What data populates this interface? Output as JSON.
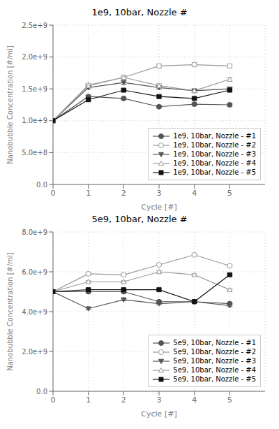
{
  "chart_data": [
    {
      "type": "line",
      "title": "1e9, 10bar, Nozzle #",
      "x_label": "Cycle [#]",
      "y_label": "Nanobubble Concentration [#/ml]",
      "x": [
        0,
        1,
        2,
        3,
        4,
        5
      ],
      "xlim": [
        0,
        6
      ],
      "xticks": [
        0,
        1,
        2,
        3,
        4,
        5
      ],
      "ylim": [
        0,
        2500000000.0
      ],
      "yticks": [
        {
          "value": 0.0,
          "label": "0.0"
        },
        {
          "value": 500000000.0,
          "label": "5.0e+8"
        },
        {
          "value": 1000000000.0,
          "label": "1.0e+9"
        },
        {
          "value": 1500000000.0,
          "label": "1.5e+9"
        },
        {
          "value": 2000000000.0,
          "label": "2.0e+9"
        },
        {
          "value": 2500000000.0,
          "label": "2.5e+9"
        }
      ],
      "grid": true,
      "legend": "lower right",
      "series": [
        {
          "name": "1e9, 10bar, Nozzle - #1",
          "color": "#555555",
          "marker": "circle",
          "values": [
            1000000000.0,
            1380000000.0,
            1350000000.0,
            1220000000.0,
            1260000000.0,
            1250000000.0
          ],
          "error": [
            0,
            20000000.0,
            20000000.0,
            20000000.0,
            20000000.0,
            20000000.0
          ]
        },
        {
          "name": "1e9, 10bar, Nozzle - #2",
          "color": "#999999",
          "marker": "circle_open",
          "values": [
            1000000000.0,
            1560000000.0,
            1680000000.0,
            1860000000.0,
            1880000000.0,
            1860000000.0
          ],
          "error": [
            0,
            20000000.0,
            20000000.0,
            30000000.0,
            30000000.0,
            30000000.0
          ]
        },
        {
          "name": "1e9, 10bar, Nozzle - #3",
          "color": "#555555",
          "marker": "triangle_down",
          "values": [
            1000000000.0,
            1520000000.0,
            1600000000.0,
            1520000000.0,
            1470000000.0,
            1500000000.0
          ],
          "error": [
            0,
            20000000.0,
            30000000.0,
            20000000.0,
            20000000.0,
            20000000.0
          ]
        },
        {
          "name": "1e9, 10bar, Nozzle - #4",
          "color": "#999999",
          "marker": "triangle_up_open",
          "values": [
            1000000000.0,
            1550000000.0,
            1680000000.0,
            1550000000.0,
            1470000000.0,
            1650000000.0
          ],
          "error": [
            0,
            30000000.0,
            30000000.0,
            30000000.0,
            30000000.0,
            30000000.0
          ]
        },
        {
          "name": "1e9, 10bar, Nozzle - #5",
          "color": "#111111",
          "marker": "square",
          "values": [
            1000000000.0,
            1330000000.0,
            1480000000.0,
            1380000000.0,
            1350000000.0,
            1480000000.0
          ],
          "error": [
            0,
            20000000.0,
            20000000.0,
            20000000.0,
            20000000.0,
            20000000.0
          ]
        }
      ]
    },
    {
      "type": "line",
      "title": "5e9, 10bar, Nozzle #",
      "x_label": "Cycle [#]",
      "y_label": "Nanobubble Concentration [#/ml]",
      "x": [
        0,
        1,
        2,
        3,
        4,
        5
      ],
      "xlim": [
        0,
        6
      ],
      "xticks": [
        0,
        1,
        2,
        3,
        4,
        5
      ],
      "ylim": [
        0,
        8000000000.0
      ],
      "yticks": [
        {
          "value": 0.0,
          "label": "0.0"
        },
        {
          "value": 2000000000.0,
          "label": "2.0e+9"
        },
        {
          "value": 4000000000.0,
          "label": "4.0e+9"
        },
        {
          "value": 6000000000.0,
          "label": "6.0e+9"
        },
        {
          "value": 8000000000.0,
          "label": "8.0e+9"
        }
      ],
      "grid": true,
      "legend": "lower right",
      "series": [
        {
          "name": "5e9, 10bar, Nozzle - #1",
          "color": "#555555",
          "marker": "circle",
          "values": [
            5000000000.0,
            5000000000.0,
            5000000000.0,
            4500000000.0,
            4500000000.0,
            4400000000.0
          ],
          "error": [
            0,
            50000000.0,
            50000000.0,
            50000000.0,
            50000000.0,
            50000000.0
          ]
        },
        {
          "name": "5e9, 10bar, Nozzle - #2",
          "color": "#999999",
          "marker": "circle_open",
          "values": [
            5000000000.0,
            5900000000.0,
            5850000000.0,
            6350000000.0,
            6850000000.0,
            6300000000.0
          ],
          "error": [
            0,
            50000000.0,
            50000000.0,
            50000000.0,
            50000000.0,
            50000000.0
          ]
        },
        {
          "name": "5e9, 10bar, Nozzle - #3",
          "color": "#555555",
          "marker": "triangle_down",
          "values": [
            5000000000.0,
            4150000000.0,
            4600000000.0,
            4400000000.0,
            4500000000.0,
            4300000000.0
          ],
          "error": [
            0,
            50000000.0,
            50000000.0,
            50000000.0,
            50000000.0,
            50000000.0
          ]
        },
        {
          "name": "5e9, 10bar, Nozzle - #4",
          "color": "#999999",
          "marker": "triangle_up_open",
          "values": [
            5000000000.0,
            5500000000.0,
            5500000000.0,
            6000000000.0,
            5850000000.0,
            5100000000.0
          ],
          "error": [
            0,
            50000000.0,
            50000000.0,
            50000000.0,
            50000000.0,
            50000000.0
          ]
        },
        {
          "name": "5e9, 10bar, Nozzle - #5",
          "color": "#111111",
          "marker": "square",
          "values": [
            5000000000.0,
            5100000000.0,
            5100000000.0,
            5100000000.0,
            4500000000.0,
            5850000000.0
          ],
          "error": [
            0,
            50000000.0,
            50000000.0,
            50000000.0,
            50000000.0,
            50000000.0
          ]
        }
      ]
    }
  ]
}
